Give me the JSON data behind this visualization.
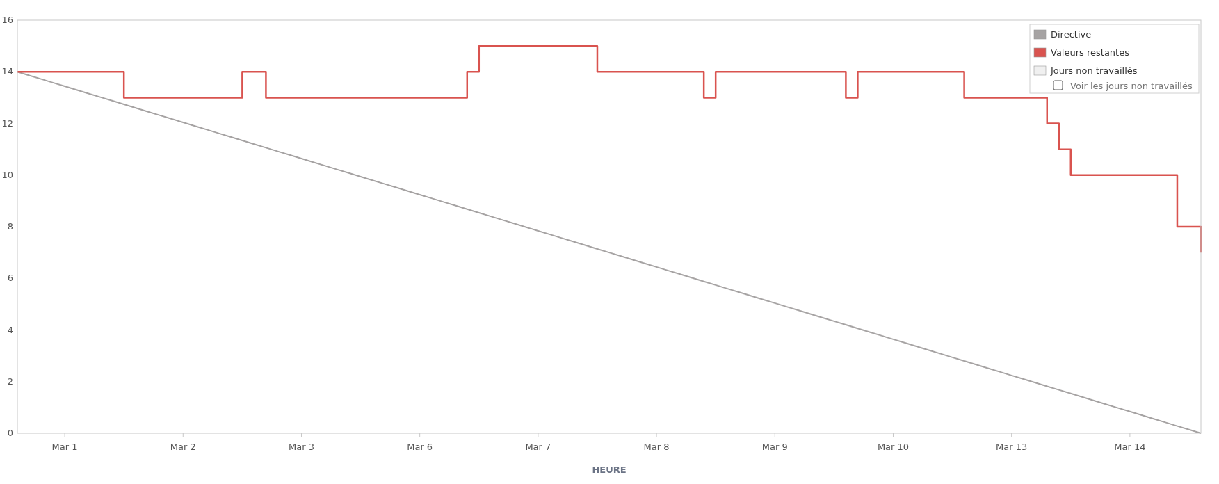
{
  "chart_data": {
    "type": "step",
    "xlabel": "HEURE",
    "ylim": [
      0,
      16
    ],
    "yticks": [
      0,
      2,
      4,
      6,
      8,
      10,
      12,
      14,
      16
    ],
    "legend": "top right",
    "annotations": [
      "Voir les jours non travaillés"
    ],
    "categories": [
      null,
      null,
      null,
      null,
      "Mar 1",
      null,
      null,
      null,
      null,
      null,
      null,
      null,
      null,
      null,
      "Mar 2",
      null,
      null,
      null,
      null,
      null,
      null,
      null,
      null,
      null,
      "Mar 3",
      null,
      null,
      null,
      null,
      null,
      null,
      null,
      null,
      null,
      "Mar 6",
      null,
      null,
      null,
      null,
      null,
      null,
      null,
      null,
      null,
      "Mar 7",
      null,
      null,
      null,
      null,
      null,
      null,
      null,
      null,
      null,
      "Mar 8",
      null,
      null,
      null,
      null,
      null,
      null,
      null,
      null,
      null,
      "Mar 9",
      null,
      null,
      null,
      null,
      null,
      null,
      null,
      null,
      null,
      "Mar 10",
      null,
      null,
      null,
      null,
      null,
      null,
      null,
      null,
      null,
      "Mar 13",
      null,
      null,
      null,
      null,
      null,
      null,
      null,
      null,
      null,
      "Mar 14",
      null,
      null,
      null,
      null,
      null,
      null
    ],
    "series": [
      {
        "name": "Directive",
        "color": "#a6a3a3",
        "type": "line",
        "values": [
          14,
          13.86,
          13.72,
          13.58,
          13.44,
          13.3,
          13.16,
          13.02,
          12.88,
          12.74,
          12.6,
          12.46,
          12.32,
          12.18,
          12.04,
          11.9,
          11.76,
          11.62,
          11.48,
          11.34,
          11.2,
          11.06,
          10.92,
          10.78,
          10.64,
          10.5,
          10.36,
          10.22,
          10.08,
          9.94,
          9.8,
          9.66,
          9.52,
          9.38,
          9.24,
          9.1,
          8.96,
          8.82,
          8.68,
          8.54,
          8.4,
          8.26,
          8.12,
          7.98,
          7.84,
          7.7,
          7.56,
          7.42,
          7.28,
          7.14,
          7,
          6.86,
          6.72,
          6.58,
          6.44,
          6.3,
          6.16,
          6.02,
          5.88,
          5.74,
          5.6,
          5.46,
          5.32,
          5.18,
          5.04,
          4.9,
          4.76,
          4.62,
          4.48,
          4.34,
          4.2,
          4.06,
          3.92,
          3.78,
          3.64,
          3.5,
          3.36,
          3.22,
          3.08,
          2.94,
          2.8,
          2.66,
          2.52,
          2.38,
          2.24,
          2.1,
          1.96,
          1.82,
          1.68,
          1.54,
          1.4,
          1.26,
          1.12,
          0.98,
          0.84,
          0.7,
          0.56,
          0.42,
          0.28,
          0.14,
          0
        ]
      },
      {
        "name": "Valeurs restantes",
        "color": "#d9534f",
        "values": [
          14,
          14,
          14,
          14,
          14,
          14,
          14,
          14,
          14,
          13,
          13,
          13,
          13,
          13,
          13,
          13,
          13,
          13,
          13,
          14,
          14,
          13,
          13,
          13,
          13,
          13,
          13,
          13,
          13,
          13,
          13,
          13,
          13,
          13,
          13,
          13,
          13,
          13,
          14,
          15,
          15,
          15,
          15,
          15,
          15,
          15,
          15,
          15,
          15,
          14,
          14,
          14,
          14,
          14,
          14,
          14,
          14,
          14,
          13,
          14,
          14,
          14,
          14,
          14,
          14,
          14,
          14,
          14,
          14,
          14,
          13,
          14,
          14,
          14,
          14,
          14,
          14,
          14,
          14,
          14,
          13,
          13,
          13,
          13,
          13,
          13,
          13,
          12,
          11,
          10,
          10,
          10,
          10,
          10,
          10,
          10,
          10,
          10,
          8,
          8,
          7
        ]
      },
      {
        "name": "Jours non travaillés",
        "color": "#f0f0f0",
        "type": "area",
        "values": [
          null,
          null,
          null,
          null,
          null,
          null,
          null,
          null,
          null,
          null,
          null,
          null,
          null,
          null,
          null,
          null,
          null,
          null,
          null,
          null,
          null,
          null,
          null,
          null,
          null,
          null,
          null,
          null,
          null,
          null,
          null,
          null,
          null,
          null,
          null,
          null,
          null,
          null,
          null,
          null,
          null,
          null,
          null,
          null,
          null,
          null,
          null,
          null,
          null,
          null,
          null,
          null,
          null,
          null,
          null,
          null,
          null,
          null,
          null,
          null,
          null,
          null,
          null,
          null,
          null,
          null,
          null,
          null,
          null,
          null,
          null,
          null,
          null,
          null,
          null,
          null,
          null,
          null,
          null,
          null,
          null,
          null,
          null,
          null,
          null,
          null,
          null,
          null,
          null,
          null,
          null,
          null,
          null,
          null,
          null,
          null,
          null,
          null,
          null,
          null,
          null
        ]
      }
    ]
  }
}
